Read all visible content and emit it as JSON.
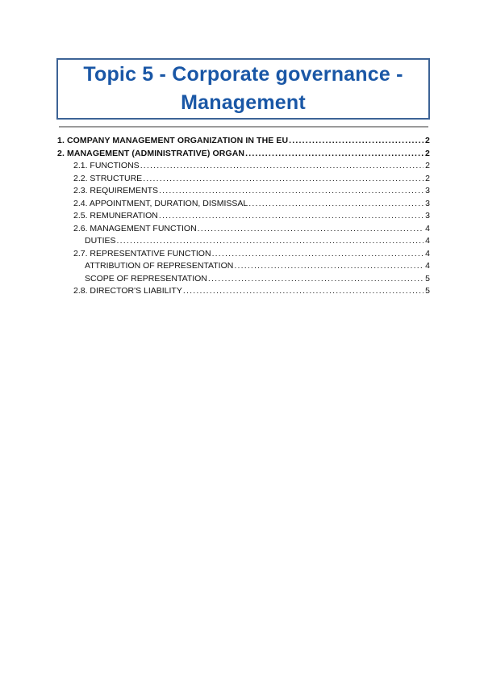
{
  "document": {
    "title_lines": [
      "Topic 5 - Corporate governance -",
      "Management"
    ]
  },
  "toc": {
    "entries": [
      {
        "label": "1. COMPANY MANAGEMENT ORGANIZATION IN THE EU",
        "page": "2",
        "level": 1,
        "bold": true
      },
      {
        "label": "2. MANAGEMENT (ADMINISTRATIVE) ORGAN",
        "page": "2",
        "level": 1,
        "bold": true
      },
      {
        "label": "2.1. FUNCTIONS",
        "page": "2",
        "level": 2,
        "bold": false
      },
      {
        "label": "2.2. STRUCTURE",
        "page": "2",
        "level": 2,
        "bold": false
      },
      {
        "label": "2.3. REQUIREMENTS",
        "page": "3",
        "level": 2,
        "bold": false
      },
      {
        "label": "2.4. APPOINTMENT, DURATION, DISMISSAL",
        "page": "3",
        "level": 2,
        "bold": false
      },
      {
        "label": "2.5. REMUNERATION",
        "page": "3",
        "level": 2,
        "bold": false
      },
      {
        "label": "2.6. MANAGEMENT FUNCTION",
        "page": "4",
        "level": 2,
        "bold": false
      },
      {
        "label": "DUTIES",
        "page": "4",
        "level": 3,
        "bold": false
      },
      {
        "label": "2.7. REPRESENTATIVE FUNCTION",
        "page": "4",
        "level": 2,
        "bold": false
      },
      {
        "label": "ATTRIBUTION OF REPRESENTATION",
        "page": "4",
        "level": 3,
        "bold": false
      },
      {
        "label": "SCOPE OF REPRESENTATION",
        "page": "5",
        "level": 3,
        "bold": false
      },
      {
        "label": "2.8. DIRECTOR'S LIABILITY",
        "page": "5",
        "level": 2,
        "bold": false
      }
    ]
  },
  "colors": {
    "title_text": "#1a57a6",
    "box_border": "#3d6396",
    "divider": "#9a9a9a",
    "toc_text": "#111111"
  }
}
